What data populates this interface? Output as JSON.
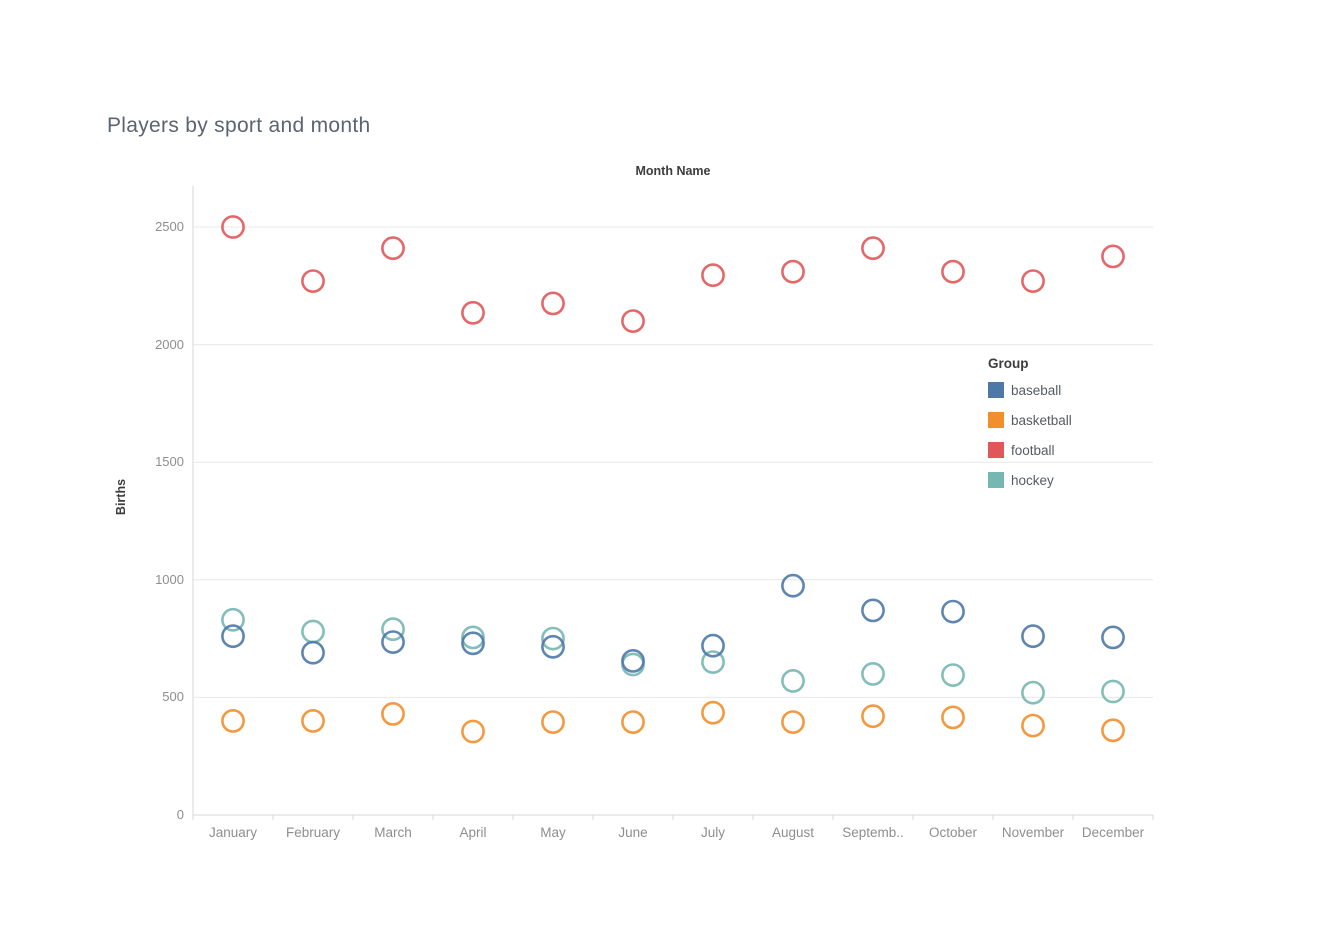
{
  "chart": {
    "title": "Players by sport and month",
    "x_axis_title": "Month Name",
    "y_axis_title": "Births",
    "legend_title": "Group"
  },
  "chart_data": {
    "type": "scatter",
    "title": "Players by sport and month",
    "xlabel": "Month Name",
    "ylabel": "Births",
    "categories": [
      "January",
      "February",
      "March",
      "April",
      "May",
      "June",
      "July",
      "August",
      "September",
      "October",
      "November",
      "December"
    ],
    "x_tick_labels": [
      "January",
      "February",
      "March",
      "April",
      "May",
      "June",
      "July",
      "August",
      "Septemb..",
      "October",
      "November",
      "December"
    ],
    "y_ticks": [
      0,
      500,
      1000,
      1500,
      2000,
      2500
    ],
    "ylim": [
      0,
      2675
    ],
    "grid": "horizontal",
    "legend_title": "Group",
    "legend_position": "right",
    "marker_style": "open-circle",
    "series": [
      {
        "name": "baseball",
        "color": "#4e79a7",
        "values": [
          760,
          690,
          735,
          730,
          715,
          655,
          720,
          975,
          870,
          865,
          760,
          755
        ]
      },
      {
        "name": "basketball",
        "color": "#f28e2b",
        "values": [
          400,
          400,
          430,
          355,
          395,
          395,
          435,
          395,
          420,
          415,
          380,
          360
        ]
      },
      {
        "name": "football",
        "color": "#e15759",
        "values": [
          2500,
          2270,
          2410,
          2135,
          2175,
          2100,
          2295,
          2310,
          2410,
          2310,
          2270,
          2375
        ]
      },
      {
        "name": "hockey",
        "color": "#76b7b2",
        "values": [
          830,
          780,
          790,
          755,
          750,
          640,
          650,
          570,
          600,
          595,
          520,
          525
        ]
      }
    ],
    "draw_order": [
      "hockey",
      "basketball",
      "baseball",
      "football"
    ],
    "colors": {
      "gridline": "#e8e8e8",
      "axis_line": "#d7d7d7",
      "tick_text": "#8e8e8e",
      "axis_title_text": "#3d3d3d",
      "title_text": "#5b6470"
    }
  }
}
